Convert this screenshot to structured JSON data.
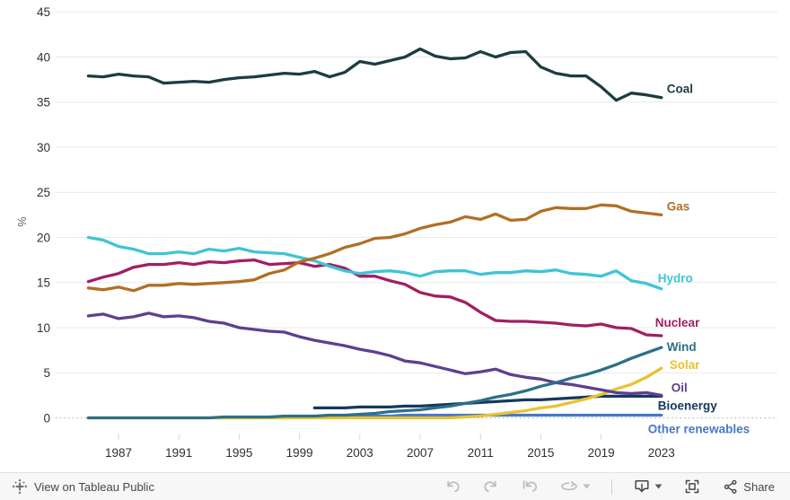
{
  "chart_data": {
    "type": "line",
    "title": "",
    "ylabel": "%",
    "ylim": [
      0,
      45
    ],
    "x_range": [
      1985,
      2023
    ],
    "grid": "horizontal",
    "legend_position": "labels-at-line-ends",
    "y_ticks": [
      0,
      5,
      10,
      15,
      20,
      25,
      30,
      35,
      40,
      45
    ],
    "x_ticks": [
      1987,
      1991,
      1995,
      1999,
      2003,
      2007,
      2011,
      2015,
      2019,
      2023
    ],
    "axis_text_color": "#2f2f2f",
    "series": [
      {
        "id": "bioenergy",
        "label": "Bioenergy",
        "color": "#14395d",
        "start_year": 2000,
        "values": [
          1.1,
          1.1,
          1.1,
          1.2,
          1.2,
          1.2,
          1.3,
          1.3,
          1.4,
          1.5,
          1.6,
          1.7,
          1.8,
          1.9,
          2.0,
          2.0,
          2.1,
          2.2,
          2.3,
          2.4,
          2.4,
          2.4,
          2.4,
          2.4
        ]
      },
      {
        "id": "other_renewables",
        "label": "Other renewables",
        "color": "#4977c9",
        "start_year": 2000,
        "values": [
          0.2,
          0.2,
          0.2,
          0.2,
          0.2,
          0.2,
          0.3,
          0.3,
          0.3,
          0.3,
          0.3,
          0.3,
          0.3,
          0.3,
          0.3,
          0.3,
          0.3,
          0.3,
          0.3,
          0.3,
          0.3,
          0.3,
          0.3,
          0.3
        ]
      },
      {
        "id": "solar",
        "label": "Solar",
        "color": "#e9c32f",
        "start_year": 1985,
        "values": [
          0,
          0,
          0,
          0,
          0,
          0,
          0,
          0,
          0,
          0,
          0,
          0,
          0,
          0,
          0,
          0,
          0,
          0,
          0,
          0,
          0,
          0,
          0,
          0,
          0,
          0.1,
          0.2,
          0.4,
          0.6,
          0.8,
          1.1,
          1.3,
          1.7,
          2.1,
          2.6,
          3.2,
          3.7,
          4.5,
          5.5
        ]
      },
      {
        "id": "oil",
        "label": "Oil",
        "color": "#5f3f8f",
        "start_year": 1985,
        "values": [
          11.3,
          11.5,
          11.0,
          11.2,
          11.6,
          11.2,
          11.3,
          11.1,
          10.7,
          10.5,
          10.0,
          9.8,
          9.6,
          9.5,
          9.0,
          8.6,
          8.3,
          8.0,
          7.6,
          7.3,
          6.9,
          6.3,
          6.1,
          5.7,
          5.3,
          4.9,
          5.1,
          5.4,
          4.8,
          4.5,
          4.3,
          3.9,
          3.7,
          3.4,
          3.1,
          2.8,
          2.7,
          2.8,
          2.5
        ]
      },
      {
        "id": "wind",
        "label": "Wind",
        "color": "#2d7088",
        "start_year": 1985,
        "values": [
          0,
          0,
          0,
          0,
          0,
          0,
          0,
          0,
          0,
          0.1,
          0.1,
          0.1,
          0.1,
          0.2,
          0.2,
          0.2,
          0.3,
          0.3,
          0.4,
          0.5,
          0.7,
          0.8,
          0.9,
          1.1,
          1.3,
          1.6,
          1.9,
          2.3,
          2.6,
          3.0,
          3.5,
          3.9,
          4.4,
          4.8,
          5.3,
          5.9,
          6.6,
          7.2,
          7.8
        ]
      },
      {
        "id": "nuclear",
        "label": "Nuclear",
        "color": "#a21e63",
        "start_year": 1985,
        "values": [
          15.1,
          15.6,
          16.0,
          16.7,
          17.0,
          17.0,
          17.2,
          17.0,
          17.3,
          17.2,
          17.4,
          17.5,
          17.0,
          17.1,
          17.2,
          16.8,
          17.0,
          16.6,
          15.7,
          15.7,
          15.2,
          14.8,
          13.9,
          13.5,
          13.4,
          12.8,
          11.7,
          10.8,
          10.7,
          10.7,
          10.6,
          10.5,
          10.3,
          10.2,
          10.4,
          10.0,
          9.9,
          9.2,
          9.1
        ]
      },
      {
        "id": "hydro",
        "label": "Hydro",
        "color": "#3fc4d6",
        "start_year": 1985,
        "values": [
          20.0,
          19.7,
          19.0,
          18.7,
          18.2,
          18.2,
          18.4,
          18.2,
          18.7,
          18.5,
          18.8,
          18.4,
          18.3,
          18.2,
          17.8,
          17.4,
          16.8,
          16.3,
          16.0,
          16.2,
          16.3,
          16.1,
          15.7,
          16.2,
          16.3,
          16.3,
          15.9,
          16.1,
          16.1,
          16.3,
          16.2,
          16.4,
          16.0,
          15.9,
          15.7,
          16.3,
          15.2,
          14.9,
          14.3
        ]
      },
      {
        "id": "gas",
        "label": "Gas",
        "color": "#b16f24",
        "start_year": 1985,
        "values": [
          14.4,
          14.2,
          14.5,
          14.1,
          14.7,
          14.7,
          14.9,
          14.8,
          14.9,
          15.0,
          15.1,
          15.3,
          16.0,
          16.4,
          17.3,
          17.7,
          18.2,
          18.9,
          19.3,
          19.9,
          20.0,
          20.4,
          21.0,
          21.4,
          21.7,
          22.3,
          22.0,
          22.6,
          21.9,
          22.0,
          22.9,
          23.3,
          23.2,
          23.2,
          23.6,
          23.5,
          22.9,
          22.7,
          22.5
        ]
      },
      {
        "id": "coal",
        "label": "Coal",
        "color": "#1c3c40",
        "start_year": 1985,
        "values": [
          37.9,
          37.8,
          38.1,
          37.9,
          37.8,
          37.1,
          37.2,
          37.3,
          37.2,
          37.5,
          37.7,
          37.8,
          38.0,
          38.2,
          38.1,
          38.4,
          37.8,
          38.3,
          39.5,
          39.2,
          39.6,
          40.0,
          40.9,
          40.1,
          39.8,
          39.9,
          40.6,
          40.0,
          40.5,
          40.6,
          38.9,
          38.2,
          37.9,
          37.9,
          36.7,
          35.2,
          36.0,
          35.8,
          35.5
        ]
      }
    ]
  },
  "toolbar": {
    "view_on_tableau": "View on Tableau Public",
    "share_label": "Share",
    "colors": {
      "background": "#f7f7f7",
      "icon_disabled": "#bcbcbc",
      "icon_enabled": "#454545",
      "text": "#474747"
    },
    "icons": [
      "tableau-logo-icon",
      "undo-icon",
      "redo-icon",
      "reset-icon",
      "refresh-icon",
      "caret-down-icon",
      "download-icon",
      "fullscreen-icon",
      "share-icon"
    ]
  }
}
